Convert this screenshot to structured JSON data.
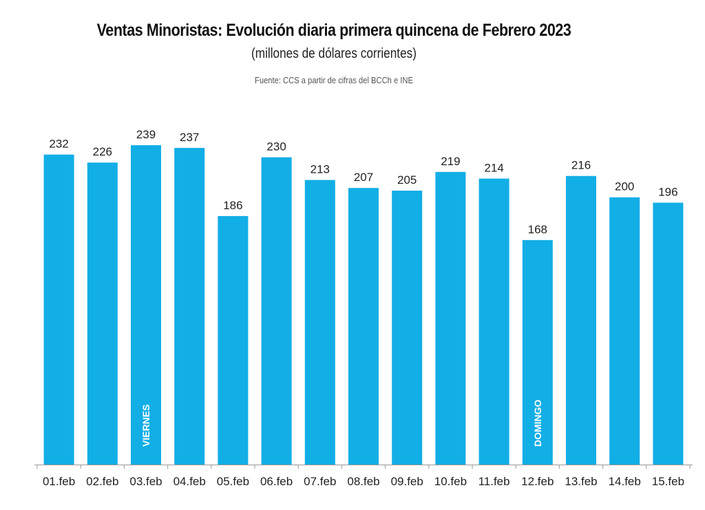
{
  "header": {
    "title": "Ventas Minoristas: Evolución diaria primera quincena de Febrero 2023",
    "subtitle": "(millones de dólares corrientes)",
    "source": "Fuente: CCS a partir de cifras del BCCh e INE"
  },
  "colors": {
    "bar": "#12aee6",
    "axis": "#999999"
  },
  "chart_data": {
    "type": "bar",
    "title": "Ventas Minoristas: Evolución diaria primera quincena de Febrero 2023",
    "subtitle": "(millones de dólares corrientes)",
    "xlabel": "",
    "ylabel": "",
    "ylim": [
      0,
      250
    ],
    "grid": false,
    "legend": "none",
    "categories": [
      "01.feb",
      "02.feb",
      "03.feb",
      "04.feb",
      "05.feb",
      "06.feb",
      "07.feb",
      "08.feb",
      "09.feb",
      "10.feb",
      "11.feb",
      "12.feb",
      "13.feb",
      "14.feb",
      "15.feb"
    ],
    "values": [
      232,
      226,
      239,
      237,
      186,
      230,
      213,
      207,
      205,
      219,
      214,
      168,
      216,
      200,
      196
    ],
    "data_labels": [
      "232",
      "226",
      "239",
      "237",
      "186",
      "230",
      "213",
      "207",
      "205",
      "219",
      "214",
      "168",
      "216",
      "200",
      "196"
    ],
    "annotations": [
      {
        "category": "03.feb",
        "text": "VIERNES"
      },
      {
        "category": "12.feb",
        "text": "DOMINGO"
      }
    ]
  }
}
